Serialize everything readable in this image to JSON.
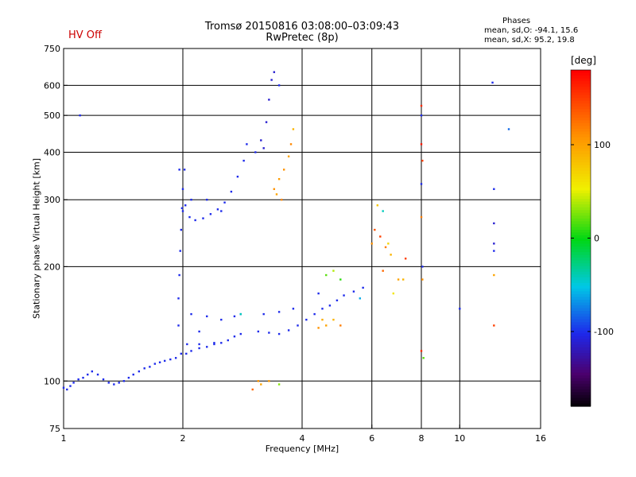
{
  "header": {
    "status": "HV Off",
    "title": "Tromsø 20150816 03:08:00–03:09:43",
    "subtitle": "RwPretec (8p)"
  },
  "stats": {
    "heading": "Phases",
    "line_o": "mean, sd,O: -94.1, 15.6",
    "line_x": "mean, sd,X: 95.2, 19.8"
  },
  "colors": {
    "status_text": "#cc0000",
    "grid": "#000000",
    "dominant_points": "#1e2ff0"
  },
  "chart_data": {
    "type": "scatter",
    "title": "Tromsø 20150816 03:08:00–03:09:43",
    "subtitle": "RwPretec (8p)",
    "xlabel": "Frequency [MHz]",
    "ylabel": "Stationary phase Virtual Height [km]",
    "x_scale": "log",
    "y_scale": "log",
    "xlim": [
      1,
      16
    ],
    "ylim": [
      75,
      750
    ],
    "x_ticks": [
      1,
      2,
      4,
      6,
      8,
      10,
      16
    ],
    "y_ticks": [
      75,
      100,
      200,
      300,
      400,
      500,
      600,
      750
    ],
    "x_grid": [
      2,
      4,
      6,
      8,
      10
    ],
    "y_grid": [
      100,
      200,
      300,
      400,
      500,
      600
    ],
    "colorbar": {
      "label": "[deg]",
      "range": [
        -180,
        180
      ],
      "ticks": [
        100,
        0,
        -100
      ]
    },
    "series": [
      {
        "points": [
          [
            1.0,
            96,
            -100
          ],
          [
            1.02,
            95,
            -100
          ],
          [
            1.04,
            97,
            -100
          ],
          [
            1.06,
            99,
            -100
          ],
          [
            1.09,
            101,
            -100
          ],
          [
            1.12,
            102,
            -100
          ],
          [
            1.15,
            104,
            -100
          ],
          [
            1.18,
            106,
            -100
          ],
          [
            1.22,
            104,
            -100
          ],
          [
            1.26,
            101,
            -100
          ],
          [
            1.3,
            99,
            -100
          ],
          [
            1.34,
            98,
            -100
          ],
          [
            1.38,
            99,
            -100
          ],
          [
            1.42,
            100,
            -100
          ],
          [
            1.46,
            102,
            -100
          ],
          [
            1.5,
            104,
            -100
          ],
          [
            1.55,
            106,
            -100
          ],
          [
            1.6,
            108,
            -100
          ],
          [
            1.65,
            109,
            -100
          ],
          [
            1.7,
            111,
            -100
          ],
          [
            1.75,
            112,
            -100
          ],
          [
            1.8,
            113,
            -100
          ],
          [
            1.86,
            114,
            -100
          ],
          [
            1.92,
            115,
            -100
          ],
          [
            1.98,
            118,
            -100
          ],
          [
            2.04,
            118,
            -100
          ],
          [
            2.1,
            120,
            -100
          ],
          [
            2.2,
            122,
            -100
          ],
          [
            2.3,
            123,
            -100
          ],
          [
            2.4,
            125,
            -100
          ],
          [
            2.5,
            126,
            -100
          ],
          [
            2.6,
            128,
            -100
          ],
          [
            2.7,
            131,
            -100
          ],
          [
            2.8,
            133,
            -100
          ],
          [
            1.95,
            140,
            -100
          ],
          [
            1.95,
            165,
            -100
          ],
          [
            1.96,
            190,
            -100
          ],
          [
            1.97,
            220,
            -100
          ],
          [
            1.98,
            250,
            -100
          ],
          [
            1.99,
            285,
            -100
          ],
          [
            2.0,
            320,
            -100
          ],
          [
            2.02,
            360,
            -100
          ],
          [
            2.03,
            290,
            -100
          ],
          [
            2.08,
            270,
            -100
          ],
          [
            2.15,
            265,
            -100
          ],
          [
            2.25,
            268,
            -100
          ],
          [
            2.35,
            275,
            -100
          ],
          [
            2.45,
            283,
            -100
          ],
          [
            2.55,
            295,
            -100
          ],
          [
            2.65,
            315,
            -100
          ],
          [
            2.75,
            345,
            -100
          ],
          [
            2.85,
            380,
            -100
          ],
          [
            2.9,
            420,
            -100
          ],
          [
            1.96,
            360,
            -100
          ],
          [
            2.0,
            280,
            -100
          ],
          [
            2.1,
            300,
            -100
          ],
          [
            2.3,
            300,
            -100
          ],
          [
            2.5,
            280,
            -100
          ],
          [
            2.05,
            125,
            -100
          ],
          [
            2.2,
            125,
            -100
          ],
          [
            2.4,
            126,
            -100
          ],
          [
            2.1,
            150,
            -100
          ],
          [
            2.3,
            148,
            -100
          ],
          [
            2.5,
            145,
            -100
          ],
          [
            2.7,
            148,
            -100
          ],
          [
            2.8,
            150,
            -100
          ],
          [
            2.2,
            135,
            -100
          ],
          [
            3.1,
            135,
            -100
          ],
          [
            3.3,
            134,
            -100
          ],
          [
            3.5,
            133,
            -100
          ],
          [
            3.7,
            136,
            -100
          ],
          [
            3.9,
            140,
            -100
          ],
          [
            4.1,
            145,
            -100
          ],
          [
            4.3,
            150,
            -100
          ],
          [
            4.5,
            155,
            -100
          ],
          [
            4.7,
            158,
            -100
          ],
          [
            4.9,
            163,
            -100
          ],
          [
            5.1,
            168,
            -100
          ],
          [
            5.4,
            172,
            -100
          ],
          [
            5.7,
            176,
            -100
          ],
          [
            3.2,
            150,
            -100
          ],
          [
            3.5,
            152,
            -100
          ],
          [
            3.8,
            155,
            -100
          ],
          [
            4.4,
            170,
            -100
          ],
          [
            3.05,
            400,
            -100
          ],
          [
            3.15,
            430,
            -110
          ],
          [
            3.25,
            480,
            -110
          ],
          [
            3.3,
            550,
            -110
          ],
          [
            3.35,
            620,
            -110
          ],
          [
            3.4,
            650,
            -110
          ],
          [
            3.5,
            600,
            -100
          ],
          [
            3.2,
            410,
            -110
          ],
          [
            8.0,
            500,
            -100
          ],
          [
            8.0,
            330,
            -100
          ],
          [
            8.05,
            200,
            -100
          ],
          [
            12.2,
            320,
            -100
          ],
          [
            12.2,
            260,
            -110
          ],
          [
            12.2,
            230,
            -110
          ],
          [
            12.2,
            220,
            -100
          ],
          [
            12.1,
            610,
            -100
          ],
          [
            13.3,
            460,
            -80
          ],
          [
            10.0,
            155,
            -100
          ],
          [
            1.1,
            500,
            -100
          ]
        ]
      },
      {
        "points": [
          [
            3.4,
            320,
            110
          ],
          [
            3.5,
            340,
            105
          ],
          [
            3.6,
            360,
            110
          ],
          [
            3.7,
            390,
            100
          ],
          [
            3.75,
            420,
            115
          ],
          [
            3.8,
            460,
            90
          ],
          [
            3.55,
            300,
            115
          ],
          [
            3.45,
            310,
            100
          ],
          [
            4.4,
            138,
            110
          ],
          [
            4.6,
            140,
            100
          ],
          [
            4.8,
            145,
            90
          ],
          [
            5.0,
            140,
            120
          ],
          [
            4.5,
            145,
            95
          ],
          [
            6.1,
            250,
            140
          ],
          [
            6.3,
            240,
            150
          ],
          [
            6.5,
            225,
            120
          ],
          [
            6.7,
            215,
            90
          ],
          [
            6.4,
            195,
            130
          ],
          [
            7.0,
            185,
            100
          ],
          [
            7.2,
            185,
            90
          ],
          [
            6.0,
            230,
            110
          ],
          [
            6.8,
            170,
            60
          ],
          [
            3.1,
            100,
            110
          ],
          [
            3.15,
            98,
            100
          ],
          [
            3.3,
            100,
            105
          ],
          [
            3.0,
            95,
            130
          ],
          [
            3.5,
            98,
            30
          ],
          [
            8.0,
            530,
            160
          ],
          [
            8.0,
            420,
            170
          ],
          [
            8.05,
            380,
            150
          ],
          [
            8.0,
            270,
            120
          ],
          [
            8.05,
            185,
            110
          ],
          [
            8.0,
            120,
            160
          ],
          [
            8.1,
            115,
            20
          ],
          [
            12.2,
            190,
            100
          ],
          [
            12.2,
            140,
            150
          ],
          [
            4.6,
            190,
            20
          ],
          [
            4.8,
            195,
            40
          ],
          [
            5.0,
            185,
            10
          ],
          [
            5.6,
            165,
            -60
          ],
          [
            6.4,
            280,
            -40
          ],
          [
            6.2,
            290,
            80
          ],
          [
            7.3,
            210,
            150
          ],
          [
            6.6,
            230,
            70
          ],
          [
            2.8,
            150,
            -40
          ]
        ]
      }
    ]
  }
}
